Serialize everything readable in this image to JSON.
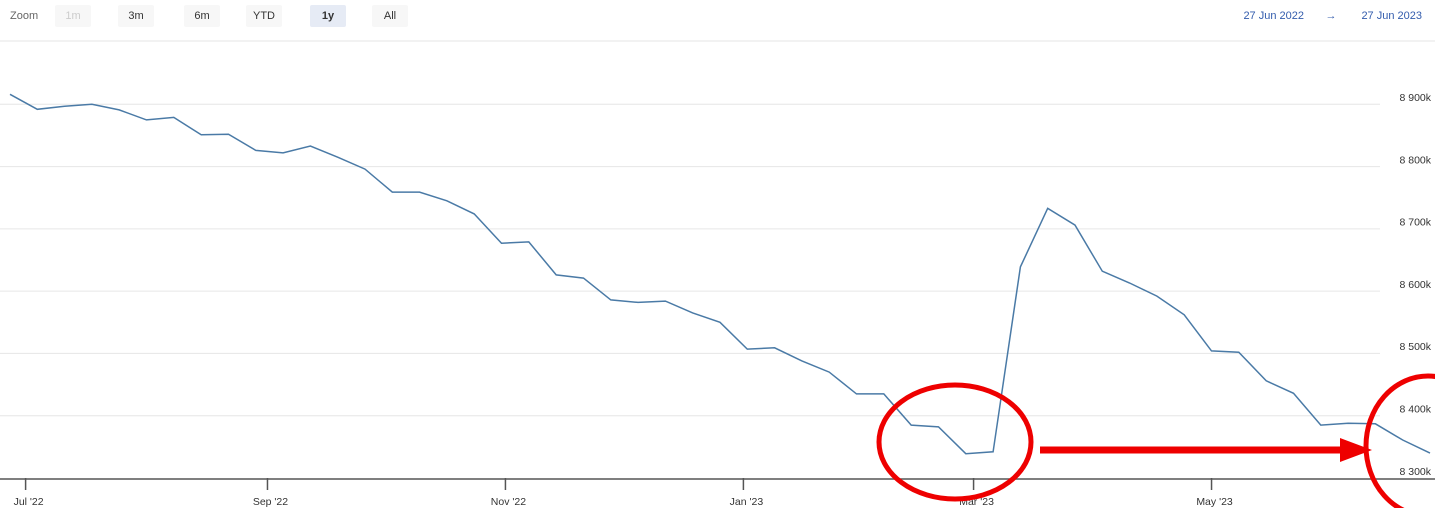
{
  "chart_data": {
    "type": "line",
    "zoom": {
      "label": "Zoom",
      "buttons": [
        {
          "label": "1m",
          "state": "disabled"
        },
        {
          "label": "3m",
          "state": "normal"
        },
        {
          "label": "6m",
          "state": "normal"
        },
        {
          "label": "YTD",
          "state": "normal"
        },
        {
          "label": "1y",
          "state": "selected"
        },
        {
          "label": "All",
          "state": "normal"
        }
      ]
    },
    "range": {
      "from": "27 Jun 2022",
      "arrow": "→",
      "to": "27 Jun 2023"
    },
    "color": "#4a7aa6",
    "x": [
      "2022-06-27",
      "2022-07-04",
      "2022-07-11",
      "2022-07-18",
      "2022-07-25",
      "2022-08-01",
      "2022-08-08",
      "2022-08-15",
      "2022-08-22",
      "2022-08-29",
      "2022-09-05",
      "2022-09-12",
      "2022-09-19",
      "2022-09-26",
      "2022-10-03",
      "2022-10-10",
      "2022-10-17",
      "2022-10-24",
      "2022-10-31",
      "2022-11-07",
      "2022-11-14",
      "2022-11-21",
      "2022-11-28",
      "2022-12-05",
      "2022-12-12",
      "2022-12-19",
      "2022-12-26",
      "2023-01-02",
      "2023-01-09",
      "2023-01-16",
      "2023-01-23",
      "2023-01-30",
      "2023-02-06",
      "2023-02-13",
      "2023-02-20",
      "2023-02-27",
      "2023-03-06",
      "2023-03-13",
      "2023-03-20",
      "2023-03-27",
      "2023-04-03",
      "2023-04-10",
      "2023-04-17",
      "2023-04-24",
      "2023-05-01",
      "2023-05-08",
      "2023-05-15",
      "2023-05-22",
      "2023-05-29",
      "2023-06-05",
      "2023-06-12",
      "2023-06-19",
      "2023-06-26"
    ],
    "values": [
      8916000,
      8892000,
      8897000,
      8900000,
      8891000,
      8875000,
      8879000,
      8851000,
      8852000,
      8826000,
      8822000,
      8833000,
      8815000,
      8796000,
      8759000,
      8759000,
      8745000,
      8724000,
      8677000,
      8679000,
      8626000,
      8621000,
      8586000,
      8582000,
      8584000,
      8565000,
      8550000,
      8507000,
      8509000,
      8488000,
      8470000,
      8435000,
      8435000,
      8385000,
      8382000,
      8339000,
      8342000,
      8639000,
      8733000,
      8706000,
      8632000,
      8613000,
      8592000,
      8562000,
      8504000,
      8502000,
      8456000,
      8436000,
      8385000,
      8388000,
      8387000,
      8361000,
      8340000
    ],
    "xlim": [
      "2022-06-27",
      "2023-06-26"
    ],
    "xticks": [
      {
        "value": "2022-07-01",
        "label": "Jul '22"
      },
      {
        "value": "2022-09-01",
        "label": "Sep '22"
      },
      {
        "value": "2022-11-01",
        "label": "Nov '22"
      },
      {
        "value": "2023-01-01",
        "label": "Jan '23"
      },
      {
        "value": "2023-03-01",
        "label": "Mar '23"
      },
      {
        "value": "2023-05-01",
        "label": "May '23"
      }
    ],
    "ylim": [
      8300000,
      9000000
    ],
    "yticks": [
      {
        "value": 8300000,
        "label": "8 300k"
      },
      {
        "value": 8400000,
        "label": "8 400k"
      },
      {
        "value": 8500000,
        "label": "8 500k"
      },
      {
        "value": 8600000,
        "label": "8 600k"
      },
      {
        "value": 8700000,
        "label": "8 700k"
      },
      {
        "value": 8800000,
        "label": "8 800k"
      },
      {
        "value": 8900000,
        "label": "8 900k"
      }
    ],
    "grid": true
  }
}
